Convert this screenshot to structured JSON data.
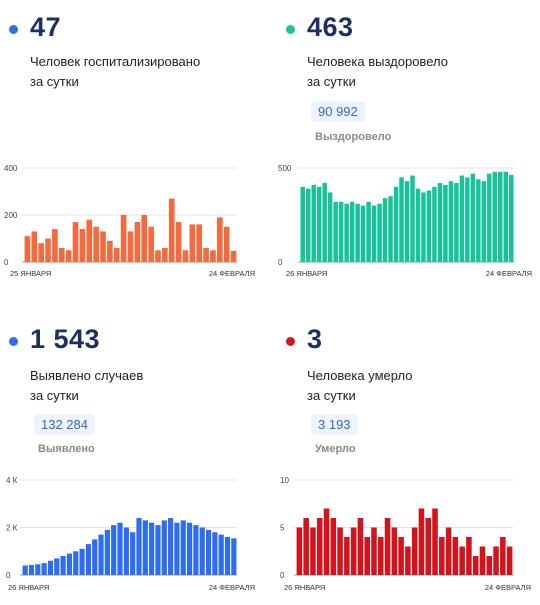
{
  "panels": [
    {
      "id": "hospitalized",
      "value": "47",
      "caption_line1": "Человек госпитализировано",
      "caption_line2": "за сутки",
      "total": "",
      "total_label": "",
      "color": "#f46a3d",
      "dot_color": "#2f6df0"
    },
    {
      "id": "recovered",
      "value": "463",
      "caption_line1": "Человека выздоровело",
      "caption_line2": "за сутки",
      "total": "90 992",
      "total_label": "Выздоровело",
      "color": "#17c39b",
      "dot_color": "#17c39b"
    },
    {
      "id": "cases",
      "value": "1 543",
      "caption_line1": "Выявлено случаев",
      "caption_line2": "за сутки",
      "total": "132 284",
      "total_label": "Выявлено",
      "color": "#2f6df0",
      "dot_color": "#2f6df0"
    },
    {
      "id": "deaths",
      "value": "3",
      "caption_line1": "Человека умерло",
      "caption_line2": "за сутки",
      "total": "3 193",
      "total_label": "Умерло",
      "color": "#d4141c",
      "dot_color": "#d4141c"
    }
  ],
  "chart_data": [
    {
      "type": "bar",
      "panel": "hospitalized",
      "ylim": [
        0,
        400
      ],
      "yticks": [
        "0",
        "200",
        "400"
      ],
      "yticks_values": [
        0,
        200,
        400
      ],
      "x_start_label": "25 ЯНВАРЯ",
      "x_end_label": "24 ФЕВРАЛЯ",
      "values": [
        110,
        130,
        80,
        100,
        140,
        60,
        50,
        170,
        140,
        180,
        150,
        130,
        90,
        60,
        200,
        130,
        170,
        200,
        150,
        50,
        60,
        270,
        170,
        50,
        160,
        160,
        60,
        50,
        190,
        150,
        47
      ]
    },
    {
      "type": "bar",
      "panel": "recovered",
      "ylim": [
        0,
        500
      ],
      "yticks": [
        "0",
        "500"
      ],
      "yticks_values": [
        0,
        500
      ],
      "x_start_label": "26 ЯНВАРЯ",
      "x_end_label": "24 ФЕВРАЛЯ",
      "values": [
        400,
        390,
        410,
        400,
        420,
        370,
        320,
        320,
        310,
        320,
        310,
        300,
        320,
        300,
        310,
        340,
        350,
        400,
        450,
        430,
        460,
        390,
        370,
        380,
        400,
        420,
        410,
        430,
        420,
        460,
        450,
        470,
        440,
        430,
        470,
        480,
        480,
        480,
        463
      ]
    },
    {
      "type": "bar",
      "panel": "cases",
      "ylim": [
        0,
        4000
      ],
      "yticks": [
        "0",
        "2 К",
        "4 К"
      ],
      "yticks_values": [
        0,
        2000,
        4000
      ],
      "x_start_label": "26 ЯНВАРЯ",
      "x_end_label": "24 ФЕВРАЛЯ",
      "values": [
        400,
        420,
        450,
        500,
        600,
        700,
        800,
        900,
        1000,
        1100,
        1300,
        1500,
        1700,
        1900,
        2100,
        2200,
        2000,
        1800,
        2400,
        2300,
        2200,
        2100,
        2300,
        2400,
        2200,
        2300,
        2200,
        2100,
        2000,
        1900,
        1800,
        1700,
        1600,
        1543
      ]
    },
    {
      "type": "bar",
      "panel": "deaths",
      "ylim": [
        0,
        10
      ],
      "yticks": [
        "0",
        "5",
        "10"
      ],
      "yticks_values": [
        0,
        5,
        10
      ],
      "x_start_label": "26 ЯНВАРЯ",
      "x_end_label": "24 ФЕВРАЛЯ",
      "values": [
        5,
        6,
        5,
        6,
        7,
        6,
        5,
        4,
        5,
        6,
        4,
        5,
        4,
        6,
        5,
        4,
        3,
        5,
        7,
        6,
        7,
        4,
        5,
        4,
        3,
        4,
        2,
        3,
        2,
        3,
        4,
        3
      ]
    }
  ]
}
